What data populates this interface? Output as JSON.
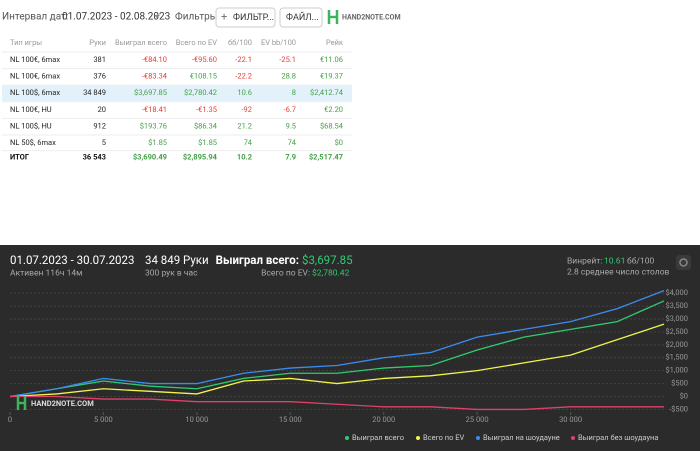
{
  "toolbar": {
    "date_label": "Интервал дат:",
    "date_range": "01.07.2023 - 02.08.2023",
    "filters_label": "Фильтры:",
    "filter_button": "ФИЛЬТР...",
    "file_button": "ФАЙЛ...",
    "logo": "HAND2NOTE.COM"
  },
  "table": {
    "columns": [
      "Тип игры",
      "Руки",
      "Выиграл всего",
      "Всего по EV",
      "бб/100",
      "EV bb/100",
      "Рейк"
    ],
    "rows": [
      [
        "NL 100€, 6max",
        "381",
        "-€84.10",
        "-€95.60",
        "-22.1",
        "-25.1",
        "€11.06"
      ],
      [
        "NL 100€, 6max",
        "376",
        "-€83.34",
        "€108.15",
        "-22.2",
        "28.8",
        "€19.37"
      ],
      [
        "NL 100$, 6max",
        "34 849",
        "$3,697.85",
        "$2,780.42",
        "10.6",
        "8",
        "$2,412.74"
      ],
      [
        "NL 100€, HU",
        "20",
        "-€18.41",
        "-€1.35",
        "-92",
        "-6.7",
        "€2.20"
      ],
      [
        "NL 100$, HU",
        "912",
        "$193.76",
        "$86.34",
        "21.2",
        "9.5",
        "$68.54"
      ],
      [
        "NL 50$, 6max",
        "5",
        "$1.85",
        "$1.85",
        "74",
        "74",
        "$0"
      ]
    ],
    "total": [
      "ИТОГ",
      "36 543",
      "$3,690.49",
      "$2,895.94",
      "10.2",
      "7.9",
      "$2,517.47"
    ],
    "highlight_row": 2
  },
  "summary": {
    "period": "01.07.2023 - 30.07.2023",
    "active": "Активен 116ч 14м",
    "hands": "34 849 Руки",
    "hands_per_hour": "300 рук в час",
    "won_label": "Выиграл всего:",
    "won_value": "$3,697.85",
    "ev_label": "Всего по EV:",
    "ev_value": "$2,780.42",
    "winrate_label": "Винрейт:",
    "winrate_value": "10.61",
    "winrate_unit": "бб/100",
    "tables": "2.8 среднее число столов"
  },
  "chart_data": {
    "type": "line",
    "watermark": "HAND2NOTE.COM",
    "x": [
      0,
      2500,
      5000,
      7500,
      10000,
      12500,
      15000,
      17500,
      20000,
      22500,
      25000,
      27500,
      30000,
      32500,
      35000
    ],
    "series": [
      {
        "name": "Выиграл всего",
        "color": "#2ecc71",
        "values": [
          0,
          300,
          600,
          400,
          300,
          700,
          900,
          900,
          1100,
          1200,
          1800,
          2300,
          2600,
          2900,
          3700
        ]
      },
      {
        "name": "Всего по EV",
        "color": "#f1f54a",
        "values": [
          0,
          100,
          300,
          200,
          100,
          600,
          700,
          500,
          700,
          800,
          1000,
          1300,
          1600,
          2200,
          2800
        ]
      },
      {
        "name": "Выиграл на шоудауне",
        "color": "#3b8cf0",
        "values": [
          0,
          300,
          700,
          500,
          500,
          900,
          1100,
          1200,
          1500,
          1700,
          2300,
          2600,
          2900,
          3400,
          4100
        ]
      },
      {
        "name": "Выиграл без шоудауна",
        "color": "#e0406a",
        "values": [
          0,
          0,
          -100,
          -100,
          -200,
          -200,
          -200,
          -300,
          -400,
          -400,
          -500,
          -500,
          -400,
          -400,
          -400
        ]
      }
    ],
    "xlim": [
      0,
      35000
    ],
    "xticks": [
      0,
      {
        "value": 5000,
        "label": "5 000"
      },
      {
        "value": 10000,
        "label": "10 000"
      },
      {
        "value": 15000,
        "label": "15 000"
      },
      {
        "value": 20000,
        "label": "20 000"
      },
      {
        "value": 25000,
        "label": "25 000"
      },
      {
        "value": 30000,
        "label": "30 000"
      }
    ],
    "ylim": [
      -600,
      4200
    ],
    "yticks": [
      {
        "value": -500,
        "label": "-$500"
      },
      {
        "value": 0,
        "label": "$0"
      },
      {
        "value": 500,
        "label": "$500"
      },
      {
        "value": 1000,
        "label": "$1,000"
      },
      {
        "value": 1500,
        "label": "$1,500"
      },
      {
        "value": 2000,
        "label": "$2,000"
      },
      {
        "value": 2500,
        "label": "$2,500"
      },
      {
        "value": 3000,
        "label": "$3,000"
      },
      {
        "value": 3500,
        "label": "$3,500"
      },
      {
        "value": 4000,
        "label": "$4,000"
      }
    ],
    "grid": true
  }
}
